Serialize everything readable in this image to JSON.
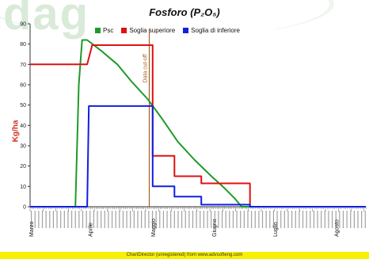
{
  "watermark": "dag",
  "footer": "ChartDirector (unregistered) from www.advsofteng.com",
  "colors": {
    "psc": "#1f9a2a",
    "upper": "#e01010",
    "lower": "#1020e0",
    "cutoff": "#a06020",
    "axis": "#333333"
  },
  "chart_data": {
    "type": "line",
    "title": "Fosforo (P₂O₅)",
    "ylabel": "Kg/ha",
    "ylim": [
      0,
      90
    ],
    "yticks": [
      0,
      10,
      20,
      30,
      40,
      50,
      60,
      70,
      80,
      90
    ],
    "xlim": [
      0,
      1
    ],
    "grid": false,
    "legend_position": "top",
    "month_labels": [
      {
        "label": "Marzo",
        "x": 0.0
      },
      {
        "label": "Aprile",
        "x": 0.176
      },
      {
        "label": "Maggio",
        "x": 0.363
      },
      {
        "label": "Giugno",
        "x": 0.545
      },
      {
        "label": "Luglio",
        "x": 0.727
      },
      {
        "label": "Agosto",
        "x": 0.909
      }
    ],
    "cutoff": {
      "label": "Data cut-off",
      "x": 0.355
    },
    "series": [
      {
        "name": "Psc",
        "points": [
          [
            0.0,
            0
          ],
          [
            0.135,
            0
          ],
          [
            0.145,
            60
          ],
          [
            0.155,
            82
          ],
          [
            0.17,
            82
          ],
          [
            0.21,
            77
          ],
          [
            0.26,
            70
          ],
          [
            0.3,
            62
          ],
          [
            0.35,
            53
          ],
          [
            0.39,
            44
          ],
          [
            0.44,
            32
          ],
          [
            0.49,
            23
          ],
          [
            0.54,
            15
          ],
          [
            0.58,
            9
          ],
          [
            0.61,
            4
          ],
          [
            0.63,
            0
          ],
          [
            1.0,
            0
          ]
        ]
      },
      {
        "name": "Soglia superiore",
        "points": [
          [
            0.0,
            70
          ],
          [
            0.17,
            70
          ],
          [
            0.185,
            79.5
          ],
          [
            0.365,
            79.5
          ],
          [
            0.365,
            25
          ],
          [
            0.43,
            25
          ],
          [
            0.43,
            15
          ],
          [
            0.51,
            15
          ],
          [
            0.51,
            11.5
          ],
          [
            0.655,
            11.5
          ],
          [
            0.655,
            0
          ],
          [
            1.0,
            0
          ]
        ]
      },
      {
        "name": "Soglia di inferiore",
        "points": [
          [
            0.0,
            0
          ],
          [
            0.17,
            0
          ],
          [
            0.175,
            49.5
          ],
          [
            0.365,
            49.5
          ],
          [
            0.365,
            10
          ],
          [
            0.43,
            10
          ],
          [
            0.43,
            5
          ],
          [
            0.51,
            5
          ],
          [
            0.51,
            1
          ],
          [
            0.655,
            1
          ],
          [
            0.655,
            0
          ],
          [
            1.0,
            0
          ]
        ]
      }
    ]
  }
}
